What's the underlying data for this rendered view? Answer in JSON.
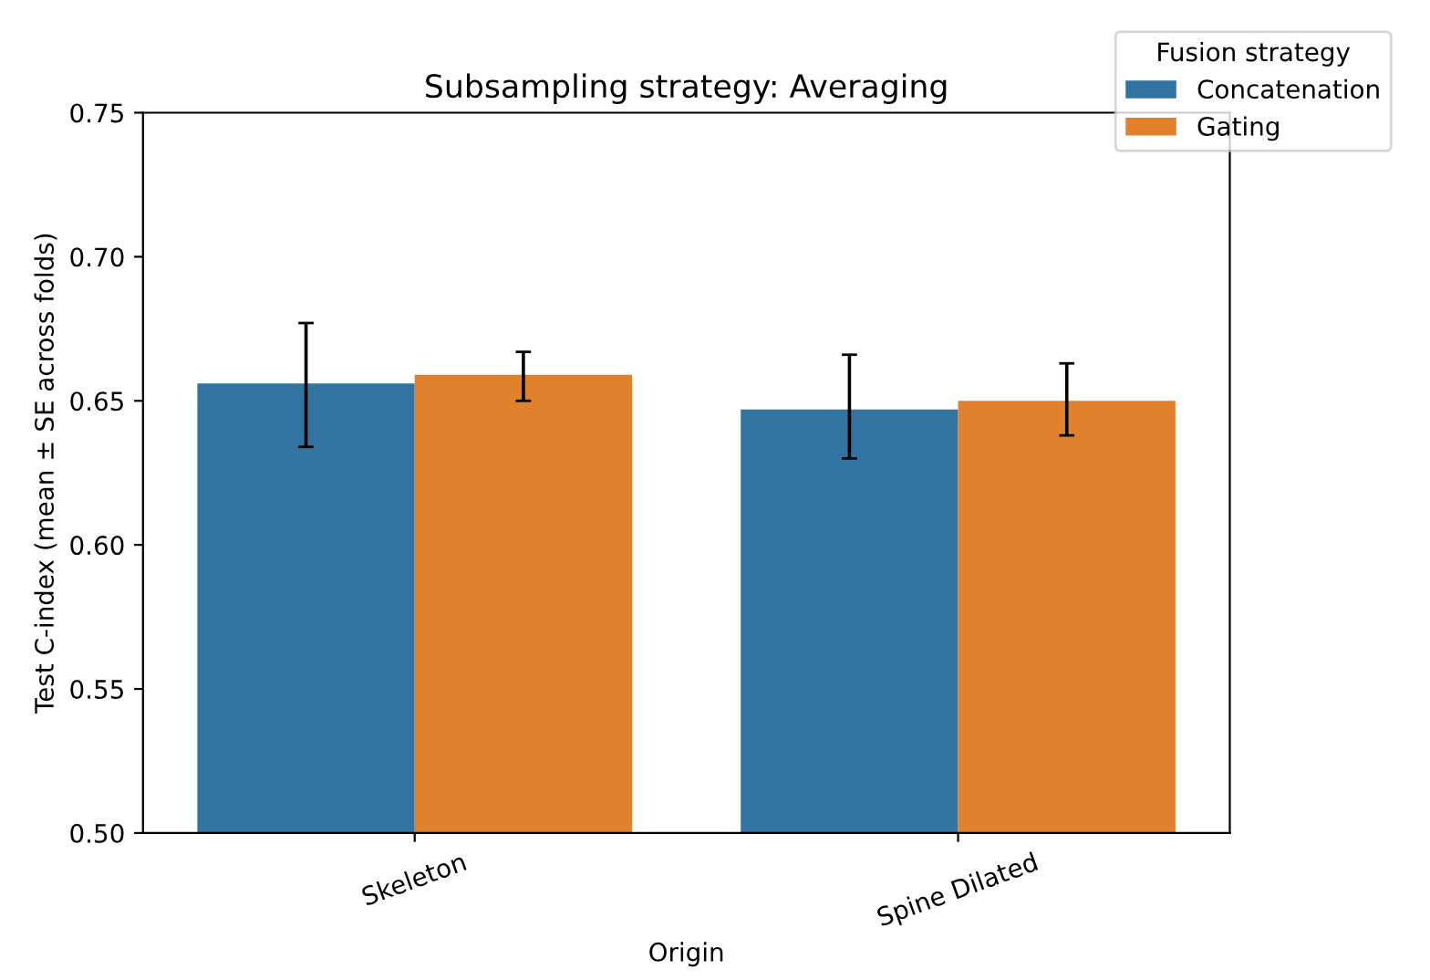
{
  "chart_data": {
    "type": "bar",
    "title": "Subsampling strategy: Averaging",
    "xlabel": "Origin",
    "ylabel": "Test C-index (mean ± SE across folds)",
    "legend_title": "Fusion strategy",
    "legend": "top right",
    "categories": [
      "Skeleton",
      "Spine Dilated"
    ],
    "series": [
      {
        "name": "Concatenation",
        "color": "#3274a1",
        "values": [
          0.656,
          0.647
        ],
        "errors": [
          [
            0.634,
            0.677
          ],
          [
            0.63,
            0.666
          ]
        ]
      },
      {
        "name": "Gating",
        "color": "#e1812c",
        "values": [
          0.659,
          0.65
        ],
        "errors": [
          [
            0.65,
            0.667
          ],
          [
            0.638,
            0.663
          ]
        ]
      }
    ],
    "ylim": [
      0.5,
      0.75
    ],
    "yticks": [
      {
        "value": 0.5,
        "label": "0.50"
      },
      0.55,
      {
        "value": 0.6,
        "label": "0.60"
      },
      0.65,
      {
        "value": 0.7,
        "label": "0.70"
      },
      0.75
    ],
    "grid": false
  }
}
